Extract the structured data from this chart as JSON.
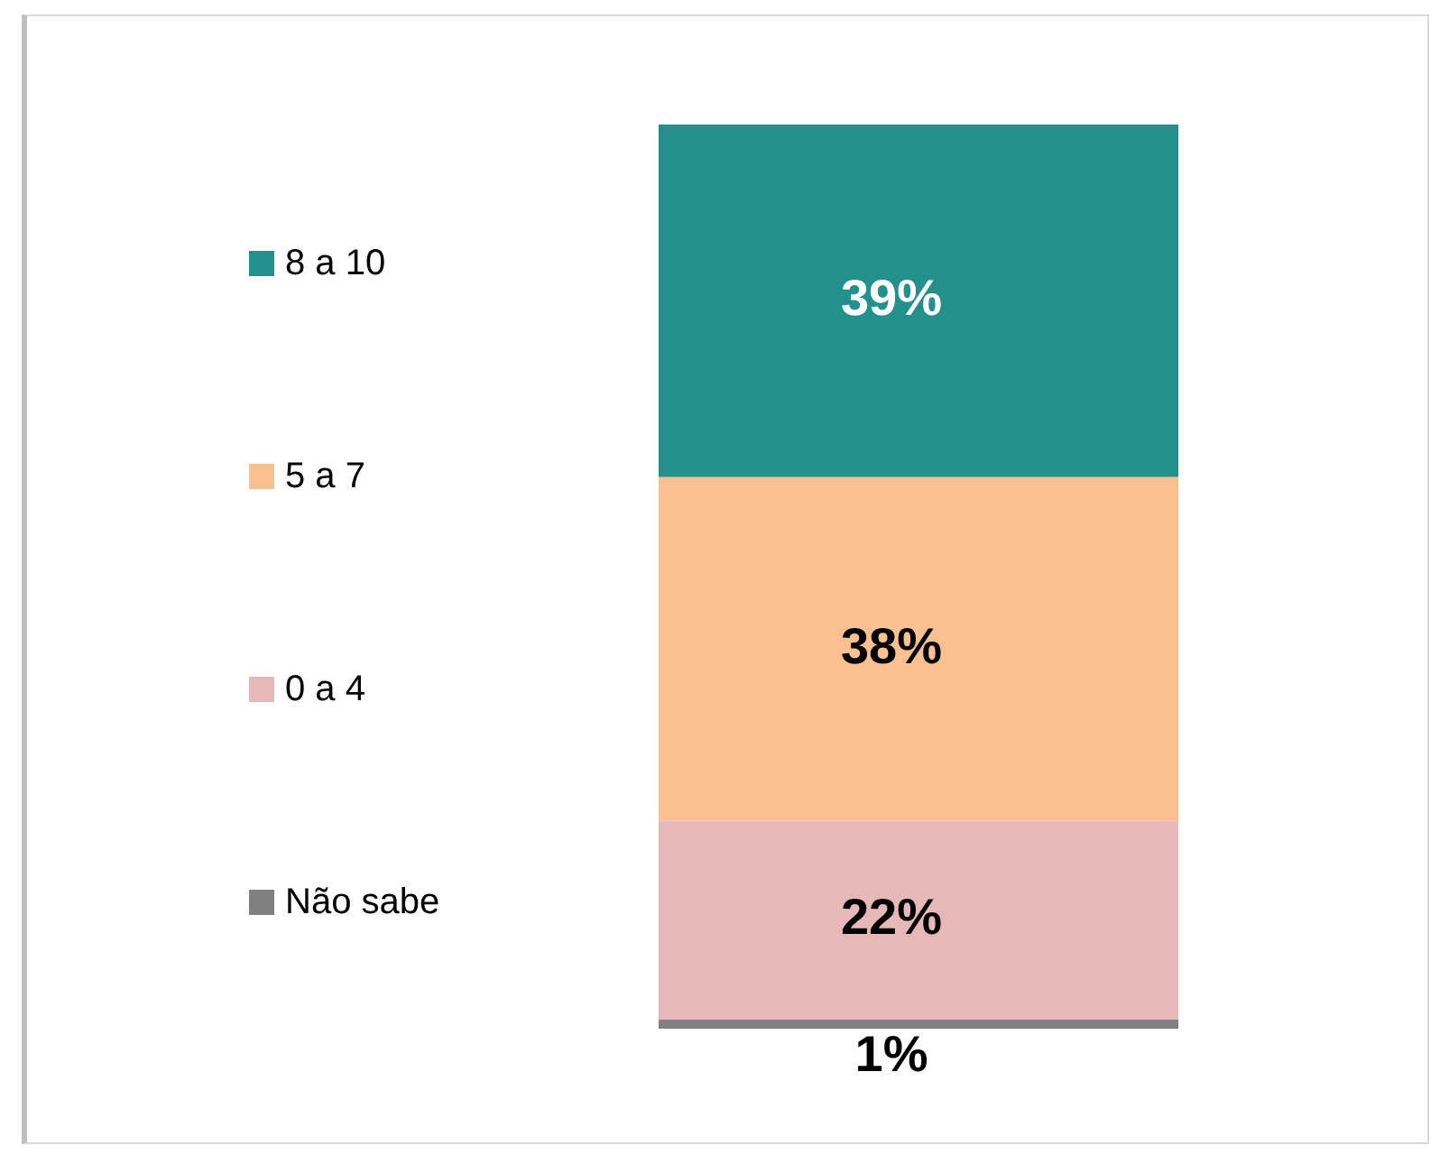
{
  "chart_data": {
    "type": "bar",
    "stacked": true,
    "categories": [
      null
    ],
    "ylim": [
      0,
      100
    ],
    "tick_labels": false,
    "legend": "left",
    "series": [
      {
        "name": "Não sabe",
        "color": "#808080",
        "values": [
          1
        ],
        "value_labels": [
          "1%"
        ]
      },
      {
        "name": "0 a 4",
        "color": "#e6b8b7",
        "values": [
          22
        ],
        "value_labels": [
          "22%"
        ]
      },
      {
        "name": "5 a 7",
        "color": "#fac090",
        "values": [
          38
        ],
        "value_labels": [
          "38%"
        ]
      },
      {
        "name": "8 a 10",
        "color": "#23908c",
        "values": [
          39
        ],
        "value_labels": [
          "39%"
        ]
      }
    ]
  }
}
